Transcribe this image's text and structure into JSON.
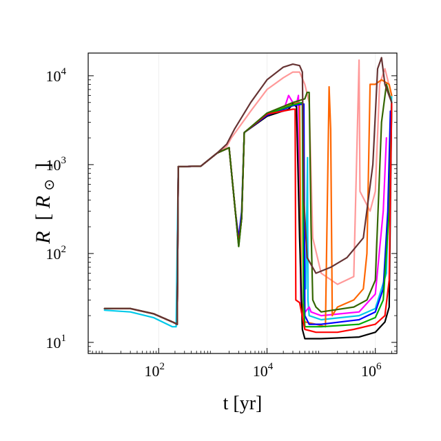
{
  "chart_data": {
    "type": "line",
    "title": "",
    "xlabel": "t [yr]",
    "ylabel_parts": {
      "var": "R",
      "bracket_open": "[",
      "unit": "R",
      "sub": "⊙",
      "bracket_close": "]"
    },
    "xscale": "log",
    "yscale": "log",
    "xlim": [
      5,
      2500000
    ],
    "ylim": [
      7.5,
      18000
    ],
    "grid": "x-faint",
    "legend": "none",
    "x_ticks": [
      {
        "value": 100,
        "base": "10",
        "exp": "2"
      },
      {
        "value": 10000,
        "base": "10",
        "exp": "4"
      },
      {
        "value": 1000000,
        "base": "10",
        "exp": "6"
      }
    ],
    "y_ticks": [
      {
        "value": 10,
        "base": "10",
        "exp": "1"
      },
      {
        "value": 100,
        "base": "10",
        "exp": "2"
      },
      {
        "value": 1000,
        "base": "10",
        "exp": "3"
      },
      {
        "value": 10000,
        "base": "10",
        "exp": "4"
      }
    ],
    "series": [
      {
        "color": "#00c8e8",
        "points": [
          [
            10,
            23
          ],
          [
            30,
            22
          ],
          [
            80,
            19
          ],
          [
            180,
            15
          ],
          [
            210,
            15
          ],
          [
            230,
            950
          ],
          [
            600,
            960
          ],
          [
            1200,
            1350
          ],
          [
            2000,
            1550
          ],
          [
            2600,
            300
          ],
          [
            3000,
            140
          ],
          [
            3400,
            250
          ],
          [
            3800,
            2300
          ],
          [
            10000,
            3600
          ],
          [
            30000,
            4600
          ],
          [
            45000,
            5000
          ],
          [
            48000,
            80
          ],
          [
            52000,
            40
          ],
          [
            56000,
            1200
          ],
          [
            57000,
            30
          ],
          [
            60000,
            20
          ],
          [
            100000,
            18
          ],
          [
            500000,
            20
          ],
          [
            1000000,
            24
          ],
          [
            1600000,
            60
          ],
          [
            1900000,
            2000
          ],
          [
            2000000,
            6000
          ]
        ]
      },
      {
        "color": "#ff00ff",
        "points": [
          [
            10,
            24
          ],
          [
            30,
            24
          ],
          [
            80,
            21
          ],
          [
            180,
            17
          ],
          [
            220,
            16
          ],
          [
            230,
            950
          ],
          [
            600,
            960
          ],
          [
            1200,
            1350
          ],
          [
            2000,
            1550
          ],
          [
            2600,
            300
          ],
          [
            3000,
            135
          ],
          [
            3400,
            250
          ],
          [
            3800,
            2300
          ],
          [
            10000,
            3700
          ],
          [
            20000,
            4000
          ],
          [
            25000,
            6000
          ],
          [
            30000,
            5000
          ],
          [
            35000,
            4800
          ],
          [
            38000,
            6000
          ],
          [
            42000,
            30
          ],
          [
            45000,
            20
          ],
          [
            60000,
            25
          ],
          [
            65000,
            22
          ],
          [
            100000,
            20
          ],
          [
            500000,
            22
          ],
          [
            1000000,
            35
          ],
          [
            1400000,
            300
          ],
          [
            1600000,
            2000
          ]
        ]
      },
      {
        "color": "#ff9999",
        "points": [
          [
            10,
            24
          ],
          [
            30,
            24
          ],
          [
            80,
            21
          ],
          [
            180,
            17
          ],
          [
            220,
            16
          ],
          [
            230,
            950
          ],
          [
            600,
            960
          ],
          [
            1200,
            1350
          ],
          [
            1800,
            1600
          ],
          [
            2200,
            2000
          ],
          [
            5000,
            4000
          ],
          [
            10000,
            7000
          ],
          [
            20000,
            9500
          ],
          [
            30000,
            11000
          ],
          [
            40000,
            11000
          ],
          [
            50000,
            8000
          ],
          [
            60000,
            5000
          ],
          [
            70000,
            150
          ],
          [
            100000,
            60
          ],
          [
            200000,
            45
          ],
          [
            400000,
            55
          ],
          [
            500000,
            15000
          ],
          [
            520000,
            500
          ],
          [
            800000,
            300
          ],
          [
            1000000,
            500
          ],
          [
            1200000,
            8000
          ],
          [
            1500000,
            12000
          ],
          [
            2000000,
            6000
          ]
        ]
      },
      {
        "color": "#ff6600",
        "points": [
          [
            10,
            24
          ],
          [
            30,
            24
          ],
          [
            80,
            21
          ],
          [
            180,
            17
          ],
          [
            220,
            16
          ],
          [
            230,
            950
          ],
          [
            600,
            960
          ],
          [
            1200,
            1350
          ],
          [
            2000,
            1550
          ],
          [
            2600,
            300
          ],
          [
            3000,
            130
          ],
          [
            3400,
            250
          ],
          [
            3800,
            2300
          ],
          [
            10000,
            3600
          ],
          [
            30000,
            4800
          ],
          [
            40000,
            5000
          ],
          [
            43000,
            30
          ],
          [
            50000,
            17
          ],
          [
            80000,
            16
          ],
          [
            120000,
            15
          ],
          [
            140000,
            7500
          ],
          [
            150000,
            2500
          ],
          [
            160000,
            20
          ],
          [
            200000,
            25
          ],
          [
            400000,
            30
          ],
          [
            600000,
            40
          ],
          [
            700000,
            100
          ],
          [
            800000,
            8000
          ],
          [
            1000000,
            8000
          ],
          [
            1300000,
            9000
          ],
          [
            1800000,
            8000
          ],
          [
            2000000,
            6000
          ]
        ]
      },
      {
        "color": "#000000",
        "points": [
          [
            10,
            24
          ],
          [
            30,
            24
          ],
          [
            80,
            21
          ],
          [
            180,
            17
          ],
          [
            220,
            16
          ],
          [
            230,
            950
          ],
          [
            600,
            960
          ],
          [
            1200,
            1350
          ],
          [
            2000,
            1550
          ],
          [
            2600,
            300
          ],
          [
            3000,
            125
          ],
          [
            3400,
            250
          ],
          [
            3800,
            2300
          ],
          [
            10000,
            3500
          ],
          [
            25000,
            4200
          ],
          [
            30000,
            4800
          ],
          [
            35000,
            4500
          ],
          [
            40000,
            150
          ],
          [
            45000,
            14
          ],
          [
            50000,
            11
          ],
          [
            100000,
            11
          ],
          [
            500000,
            11.5
          ],
          [
            1000000,
            13
          ],
          [
            1500000,
            17
          ],
          [
            1800000,
            25
          ],
          [
            2000000,
            5000
          ]
        ]
      },
      {
        "color": "#0000ff",
        "points": [
          [
            10,
            24
          ],
          [
            30,
            24
          ],
          [
            80,
            21
          ],
          [
            180,
            17
          ],
          [
            220,
            16
          ],
          [
            230,
            950
          ],
          [
            600,
            960
          ],
          [
            1200,
            1350
          ],
          [
            2000,
            1550
          ],
          [
            2600,
            300
          ],
          [
            3000,
            150
          ],
          [
            3400,
            300
          ],
          [
            3800,
            2300
          ],
          [
            10000,
            3600
          ],
          [
            30000,
            4600
          ],
          [
            45000,
            4800
          ],
          [
            48000,
            4800
          ],
          [
            50000,
            20
          ],
          [
            60000,
            16
          ],
          [
            100000,
            16
          ],
          [
            500000,
            18
          ],
          [
            1000000,
            22
          ],
          [
            1400000,
            40
          ],
          [
            1700000,
            300
          ],
          [
            1900000,
            4000
          ]
        ]
      },
      {
        "color": "#00aa00",
        "points": [
          [
            10,
            24
          ],
          [
            30,
            24
          ],
          [
            80,
            21
          ],
          [
            180,
            17
          ],
          [
            220,
            16
          ],
          [
            230,
            950
          ],
          [
            600,
            960
          ],
          [
            1200,
            1350
          ],
          [
            2000,
            1550
          ],
          [
            2600,
            300
          ],
          [
            3000,
            120
          ],
          [
            3400,
            250
          ],
          [
            3800,
            2300
          ],
          [
            10000,
            3700
          ],
          [
            30000,
            4700
          ],
          [
            45000,
            5000
          ],
          [
            47000,
            30
          ],
          [
            50000,
            15
          ],
          [
            100000,
            15
          ],
          [
            500000,
            16
          ],
          [
            1000000,
            19
          ],
          [
            1400000,
            30
          ],
          [
            1800000,
            300
          ],
          [
            2000000,
            4000
          ]
        ]
      },
      {
        "color": "#ff0000",
        "points": [
          [
            10,
            24
          ],
          [
            30,
            24
          ],
          [
            80,
            21
          ],
          [
            180,
            17
          ],
          [
            220,
            16
          ],
          [
            230,
            950
          ],
          [
            600,
            960
          ],
          [
            1200,
            1350
          ],
          [
            2000,
            1550
          ],
          [
            2600,
            300
          ],
          [
            3000,
            130
          ],
          [
            3400,
            250
          ],
          [
            3800,
            2300
          ],
          [
            10000,
            3700
          ],
          [
            30000,
            4200
          ],
          [
            33000,
            4200
          ],
          [
            34000,
            30
          ],
          [
            40000,
            28
          ],
          [
            50000,
            14
          ],
          [
            80000,
            13
          ],
          [
            200000,
            13
          ],
          [
            400000,
            14
          ],
          [
            1000000,
            16
          ],
          [
            1500000,
            20
          ],
          [
            1800000,
            50
          ],
          [
            2000000,
            5000
          ]
        ]
      },
      {
        "color": "#336600",
        "points": [
          [
            10,
            24
          ],
          [
            30,
            24
          ],
          [
            80,
            21
          ],
          [
            180,
            17
          ],
          [
            220,
            16
          ],
          [
            230,
            950
          ],
          [
            600,
            960
          ],
          [
            1200,
            1350
          ],
          [
            2000,
            1550
          ],
          [
            2600,
            300
          ],
          [
            3000,
            120
          ],
          [
            3400,
            250
          ],
          [
            3800,
            2300
          ],
          [
            10000,
            3800
          ],
          [
            30000,
            5000
          ],
          [
            50000,
            5500
          ],
          [
            55000,
            6500
          ],
          [
            60000,
            6500
          ],
          [
            65000,
            200
          ],
          [
            70000,
            30
          ],
          [
            80000,
            25
          ],
          [
            100000,
            22
          ],
          [
            400000,
            25
          ],
          [
            700000,
            30
          ],
          [
            1000000,
            50
          ],
          [
            1300000,
            3000
          ],
          [
            1600000,
            8000
          ],
          [
            2000000,
            5000
          ]
        ]
      },
      {
        "color": "#663333",
        "points": [
          [
            10,
            24
          ],
          [
            30,
            24
          ],
          [
            80,
            21
          ],
          [
            180,
            17
          ],
          [
            220,
            16
          ],
          [
            230,
            950
          ],
          [
            600,
            960
          ],
          [
            1200,
            1350
          ],
          [
            1800,
            1700
          ],
          [
            2500,
            2500
          ],
          [
            5000,
            5000
          ],
          [
            10000,
            9000
          ],
          [
            20000,
            12500
          ],
          [
            30000,
            13500
          ],
          [
            40000,
            13000
          ],
          [
            45000,
            11000
          ],
          [
            48000,
            400
          ],
          [
            55000,
            90
          ],
          [
            80000,
            60
          ],
          [
            150000,
            70
          ],
          [
            300000,
            90
          ],
          [
            600000,
            150
          ],
          [
            900000,
            1000
          ],
          [
            1100000,
            12000
          ],
          [
            1300000,
            16000
          ],
          [
            1500000,
            8000
          ],
          [
            2000000,
            5000
          ]
        ]
      }
    ]
  }
}
